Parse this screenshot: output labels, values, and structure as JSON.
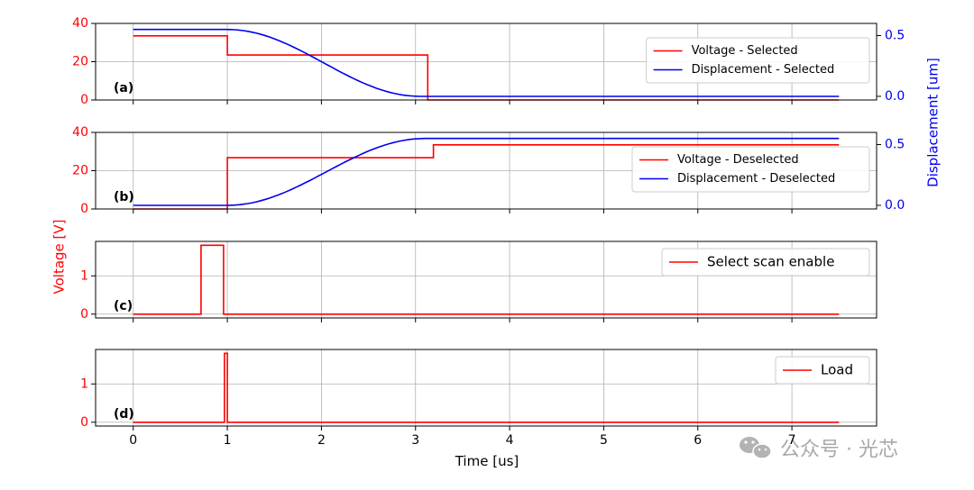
{
  "chart_data": {
    "type": "line",
    "xlabel": "Time [us]",
    "ylabel_left": "Voltage [V]",
    "ylabel_right": "Displacement [um]",
    "xlim": [
      -0.4,
      7.9
    ],
    "x_ticks": [
      0,
      1,
      2,
      3,
      4,
      5,
      6,
      7
    ],
    "grid": true,
    "colors": {
      "voltage": "#ff0000",
      "displacement": "#0000ee",
      "grid": "#b0b0b0"
    },
    "panels": [
      {
        "label": "(a)",
        "ylim": [
          0,
          40
        ],
        "y_ticks": [
          0,
          20,
          40
        ],
        "ylim_right": [
          -0.03,
          0.6
        ],
        "y_ticks_right": [
          0.0,
          0.5
        ],
        "legend_position": "right",
        "series": [
          {
            "name": "Voltage - Selected",
            "axis": "left",
            "color": "#ff0000",
            "kind": "step",
            "x": [
              0,
              1,
              1,
              3.13,
              3.13,
              7.5
            ],
            "y": [
              33.5,
              33.5,
              23.5,
              23.5,
              0,
              0
            ]
          },
          {
            "name": "Displacement - Selected",
            "axis": "right",
            "color": "#0000ee",
            "kind": "smooth",
            "start": 0.55,
            "end": 0.0,
            "t_start": 1.0,
            "t_end": 3.05,
            "x_min": 0,
            "x_max": 7.5
          }
        ]
      },
      {
        "label": "(b)",
        "ylim": [
          0,
          40
        ],
        "y_ticks": [
          0,
          20,
          40
        ],
        "ylim_right": [
          -0.03,
          0.6
        ],
        "y_ticks_right": [
          0.0,
          0.5
        ],
        "legend_position": "right",
        "series": [
          {
            "name": "Voltage - Deselected",
            "axis": "left",
            "color": "#ff0000",
            "kind": "step",
            "x": [
              0,
              1,
              1,
              3.19,
              3.19,
              7.5
            ],
            "y": [
              0,
              0,
              26.8,
              26.8,
              33.5,
              33.5
            ]
          },
          {
            "name": "Displacement - Deselected",
            "axis": "right",
            "color": "#0000ee",
            "kind": "smooth",
            "start": 0.0,
            "end": 0.55,
            "t_start": 1.0,
            "t_end": 3.1,
            "x_min": 0,
            "x_max": 7.5
          }
        ]
      },
      {
        "label": "(c)",
        "ylim": [
          -0.1,
          1.9
        ],
        "y_ticks": [
          0,
          1
        ],
        "legend_position": "upper right",
        "series": [
          {
            "name": "Select scan enable",
            "axis": "left",
            "color": "#ff0000",
            "kind": "step",
            "x": [
              0,
              0.72,
              0.72,
              0.96,
              0.96,
              7.5
            ],
            "y": [
              0,
              0,
              1.8,
              1.8,
              0,
              0
            ]
          }
        ]
      },
      {
        "label": "(d)",
        "ylim": [
          -0.1,
          1.9
        ],
        "y_ticks": [
          0,
          1
        ],
        "legend_position": "upper right",
        "series": [
          {
            "name": "Load",
            "axis": "left",
            "color": "#ff0000",
            "kind": "step",
            "x": [
              0,
              0.97,
              0.97,
              1.0,
              1.0,
              7.5
            ],
            "y": [
              0,
              0,
              1.8,
              1.8,
              0,
              0
            ]
          }
        ]
      }
    ]
  },
  "watermark": {
    "text": "公众号 · 光芯",
    "icon": "wechat-icon"
  }
}
